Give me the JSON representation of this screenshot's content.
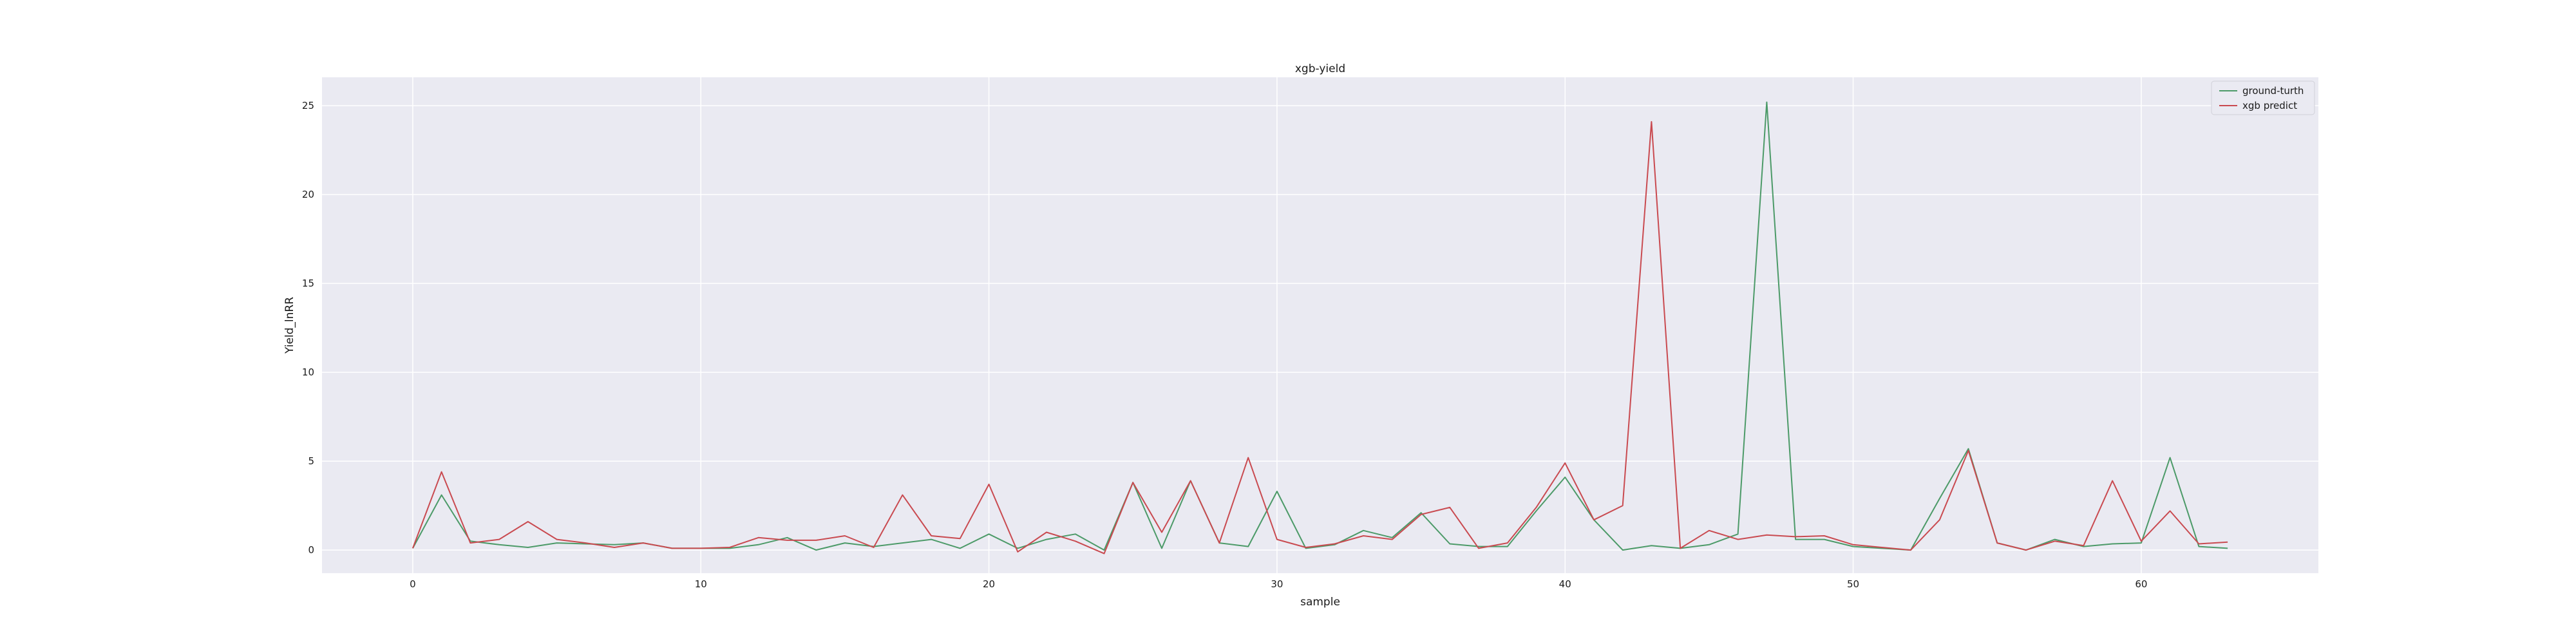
{
  "chart_data": {
    "type": "line",
    "title": "xgb-yield",
    "xlabel": "sample",
    "ylabel": "Yield_lnRR",
    "xlim": [
      -3.15,
      66.15
    ],
    "ylim": [
      -1.3,
      26.6
    ],
    "xticks": [
      0,
      10,
      20,
      30,
      40,
      50,
      60
    ],
    "yticks": [
      0,
      5,
      10,
      15,
      20,
      25
    ],
    "grid": true,
    "legend_position": "top-right",
    "x": [
      0,
      1,
      2,
      3,
      4,
      5,
      6,
      7,
      8,
      9,
      10,
      11,
      12,
      13,
      14,
      15,
      16,
      17,
      18,
      19,
      20,
      21,
      22,
      23,
      24,
      25,
      26,
      27,
      28,
      29,
      30,
      31,
      32,
      33,
      34,
      35,
      36,
      37,
      38,
      39,
      40,
      41,
      42,
      43,
      44,
      45,
      46,
      47,
      48,
      49,
      50,
      51,
      52,
      53,
      54,
      55,
      56,
      57,
      58,
      59,
      60,
      61,
      62,
      63
    ],
    "series": [
      {
        "name": "ground-turth",
        "color": "#4c9a68",
        "values": [
          0.1,
          3.1,
          0.5,
          0.3,
          0.15,
          0.4,
          0.35,
          0.3,
          0.4,
          0.1,
          0.1,
          0.1,
          0.3,
          0.7,
          0.0,
          0.4,
          0.2,
          0.4,
          0.6,
          0.1,
          0.9,
          0.1,
          0.6,
          0.9,
          0.0,
          3.8,
          0.1,
          3.9,
          0.4,
          0.2,
          3.3,
          0.1,
          0.3,
          1.1,
          0.7,
          2.1,
          0.35,
          0.2,
          0.2,
          2.2,
          4.1,
          1.7,
          0.0,
          0.25,
          0.1,
          0.3,
          0.9,
          25.2,
          0.6,
          0.6,
          0.2,
          0.1,
          0.0,
          2.9,
          5.7,
          0.4,
          0.0,
          0.6,
          0.2,
          0.35,
          0.4,
          5.2,
          0.2,
          0.1
        ]
      },
      {
        "name": "xgb predict",
        "color": "#c94a50",
        "values": [
          0.1,
          4.4,
          0.4,
          0.6,
          1.6,
          0.6,
          0.4,
          0.15,
          0.4,
          0.1,
          0.1,
          0.15,
          0.7,
          0.55,
          0.55,
          0.8,
          0.15,
          3.1,
          0.8,
          0.65,
          3.7,
          -0.1,
          1.0,
          0.5,
          -0.2,
          3.8,
          1.0,
          3.9,
          0.4,
          5.2,
          0.6,
          0.15,
          0.35,
          0.8,
          0.6,
          2.0,
          2.4,
          0.1,
          0.4,
          2.4,
          4.9,
          1.7,
          2.5,
          24.1,
          0.1,
          1.1,
          0.6,
          0.85,
          0.75,
          0.8,
          0.3,
          0.15,
          0.0,
          1.7,
          5.6,
          0.4,
          0.0,
          0.5,
          0.25,
          3.9,
          0.5,
          2.2,
          0.35,
          0.45
        ]
      }
    ]
  }
}
